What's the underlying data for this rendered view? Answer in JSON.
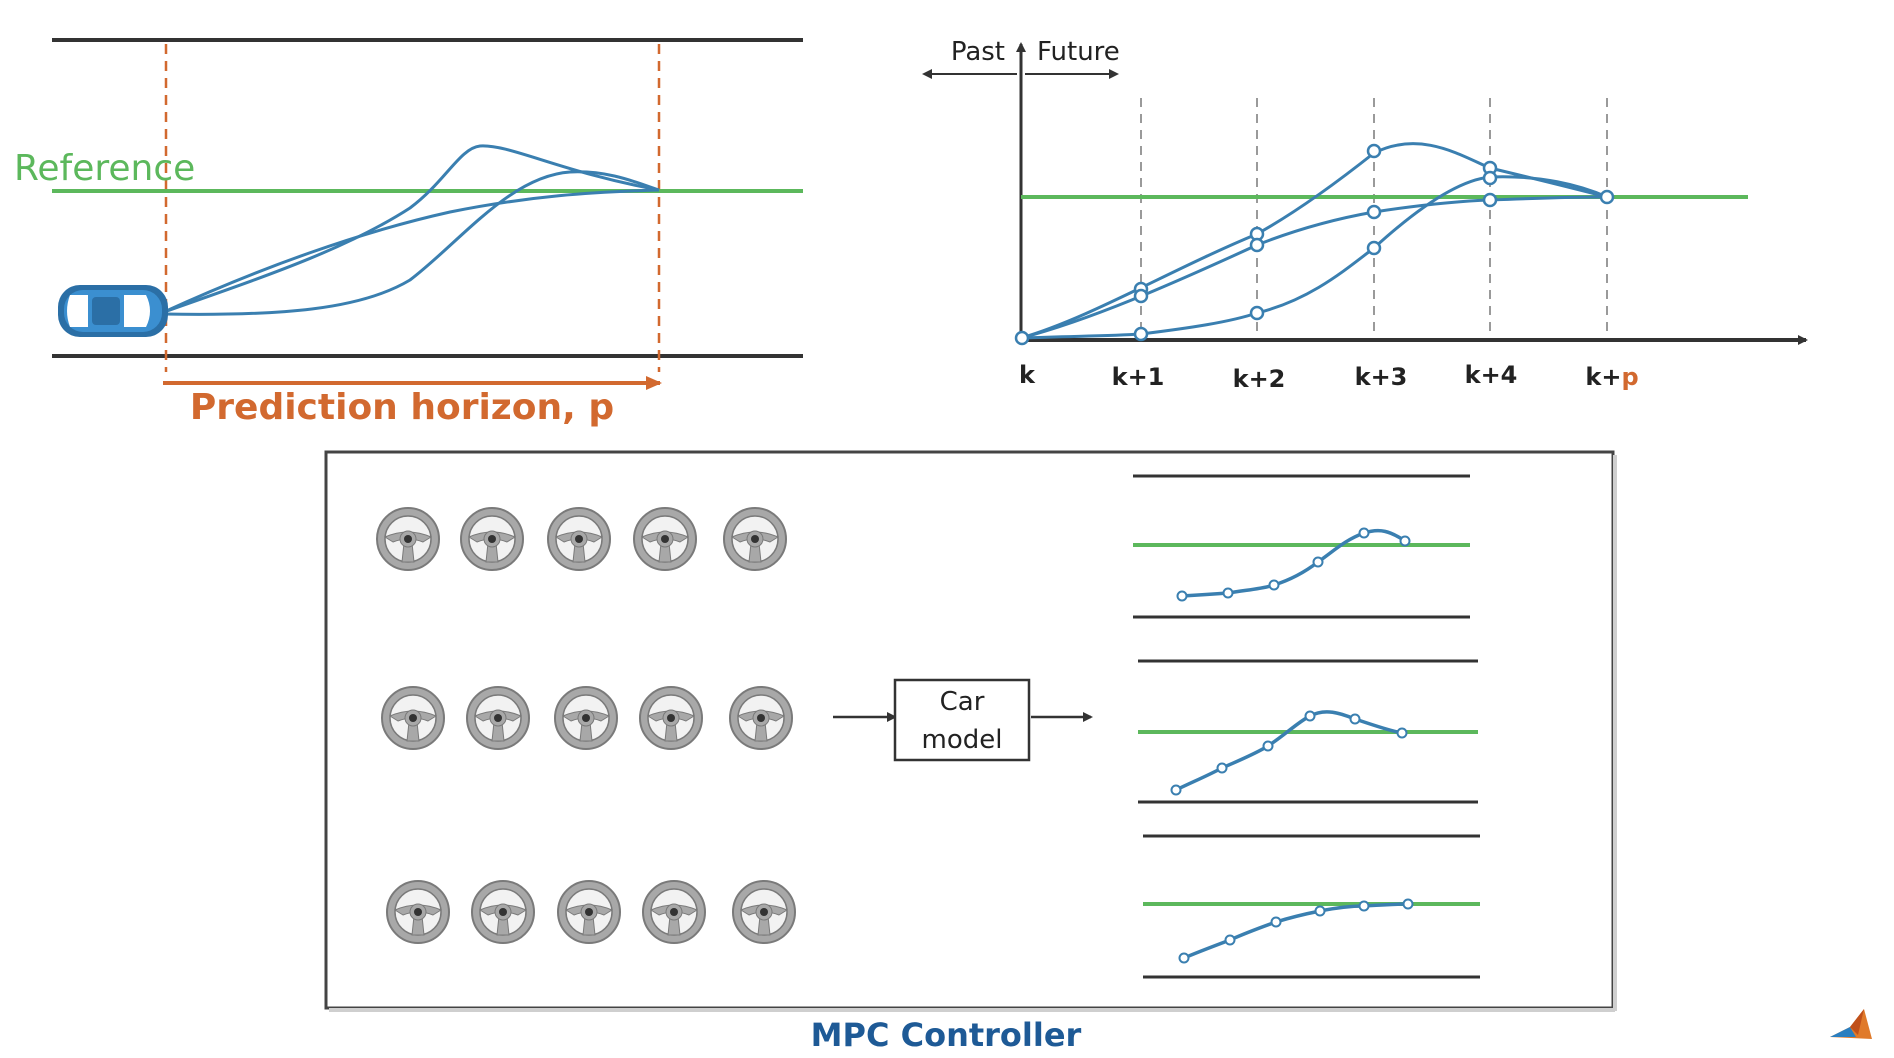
{
  "left_panel": {
    "reference_label": "Reference",
    "horizon_label": "Prediction horizon, p",
    "car_icon": "car-icon"
  },
  "time_panel": {
    "past_label": "Past",
    "future_label": "Future",
    "ticks": [
      {
        "base": "k",
        "suffix": ""
      },
      {
        "base": "k+1",
        "suffix": ""
      },
      {
        "base": "k+2",
        "suffix": ""
      },
      {
        "base": "k+3",
        "suffix": ""
      },
      {
        "base": "k+4",
        "suffix": ""
      },
      {
        "base": "k+",
        "suffix": "p"
      }
    ]
  },
  "controller": {
    "title": "MPC Controller",
    "model_line1": "Car",
    "model_line2": "model",
    "input_icon": "steering-wheel-icon",
    "wheel_rows": 3,
    "wheels_per_row": 5
  },
  "colors": {
    "reference": "#5cb85c",
    "trajectory": "#3a7fb0",
    "horizon": "#d2692f",
    "road": "#333333",
    "wheel": "#a8a8a8"
  }
}
